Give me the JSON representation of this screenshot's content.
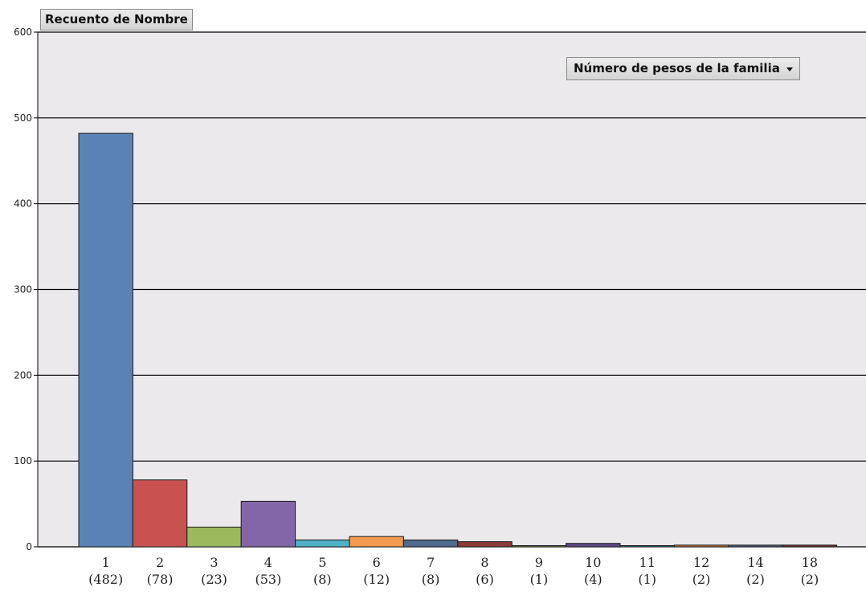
{
  "measure_button": {
    "label": "Recuento de Nombre"
  },
  "dimension_button": {
    "label": "Número de pesos de la familia",
    "icon": "chevron-down-icon"
  },
  "colors": {
    "plot_background": "#ebe9ec",
    "gridline": "#000000",
    "axis_text": "#222222"
  },
  "chart_data": {
    "type": "bar",
    "title": "",
    "xlabel": "",
    "ylabel": "",
    "ylim": [
      0,
      600
    ],
    "yticks": [
      0,
      100,
      200,
      300,
      400,
      500,
      600
    ],
    "grid": true,
    "categories": [
      "1",
      "2",
      "3",
      "4",
      "5",
      "6",
      "7",
      "8",
      "9",
      "10",
      "11",
      "12",
      "14",
      "18"
    ],
    "count_labels": [
      "(482)",
      "(78)",
      "(23)",
      "(53)",
      "(8)",
      "(12)",
      "(8)",
      "(6)",
      "(1)",
      "(4)",
      "(1)",
      "(2)",
      "(2)",
      "(2)"
    ],
    "values": [
      482,
      78,
      23,
      53,
      8,
      12,
      8,
      6,
      1,
      4,
      1,
      2,
      2,
      2
    ],
    "bar_colors": [
      "#5b82b5",
      "#c9514f",
      "#9bba5d",
      "#8366a8",
      "#4fb0c6",
      "#f29a4f",
      "#4e6a8c",
      "#8c3a36",
      "#6f8a3e",
      "#5b4a82",
      "#2f7f93",
      "#c7763a",
      "#4d5f80",
      "#7a3030"
    ]
  }
}
